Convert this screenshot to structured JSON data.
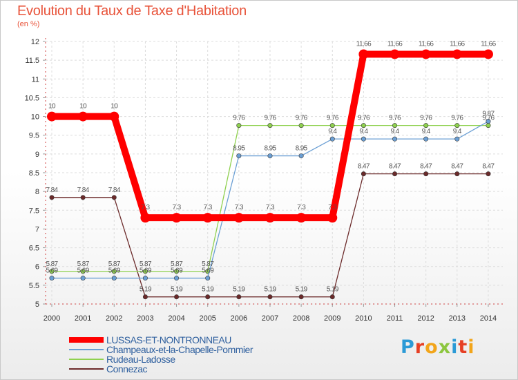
{
  "title": "Evolution du Taux de Taxe d'Habitation",
  "subtitle": "(en %)",
  "brand": [
    "P",
    "r",
    "o",
    "x",
    "i",
    "t",
    "i"
  ],
  "brand_colors": [
    "#2b9ad6",
    "#e63f24",
    "#f2a51a",
    "#8cc63e",
    "#2b9ad6",
    "#e63f24",
    "#f2a51a"
  ],
  "chart_data": {
    "type": "line",
    "x": [
      "2000",
      "2001",
      "2002",
      "2003",
      "2004",
      "2005",
      "2006",
      "2007",
      "2008",
      "2009",
      "2010",
      "2011",
      "2012",
      "2013",
      "2014"
    ],
    "ylim": [
      5,
      12
    ],
    "yticks": [
      "5",
      "5.5",
      "6",
      "6.5",
      "7",
      "7.5",
      "8",
      "8.5",
      "9",
      "9.5",
      "10",
      "10.5",
      "11",
      "11.5",
      "12"
    ],
    "series": [
      {
        "name": "LUSSAS-ET-NONTRONNEAU",
        "color": "#ff0000",
        "values": [
          10,
          10,
          10,
          7.3,
          7.3,
          7.3,
          7.3,
          7.3,
          7.3,
          7.3,
          11.66,
          11.66,
          11.66,
          11.66,
          11.66
        ],
        "labels": [
          "10",
          "10",
          "10",
          "7.3",
          "7.3",
          "7.3",
          "7.3",
          "7.3",
          "7.3",
          "7.3",
          "11.66",
          "11.66",
          "11.66",
          "11.66",
          "11.66"
        ]
      },
      {
        "name": "Champeaux-et-la-Chapelle-Pommier",
        "color": "#6b9fd4",
        "values": [
          5.69,
          5.69,
          5.69,
          5.69,
          5.69,
          5.69,
          8.95,
          8.95,
          8.95,
          9.4,
          9.4,
          9.4,
          9.4,
          9.4,
          9.87
        ],
        "labels": [
          "5.69",
          "5.69",
          "5.69",
          "5.69",
          "5.69",
          "5.69",
          "8.95",
          "8.95",
          "8.95",
          "9.4",
          "9.4",
          "9.4",
          "9.4",
          "9.4",
          "9.87"
        ]
      },
      {
        "name": "Rudeau-Ladosse",
        "color": "#8fd14f",
        "values": [
          5.87,
          5.87,
          5.87,
          5.87,
          5.87,
          5.87,
          9.76,
          9.76,
          9.76,
          9.76,
          9.76,
          9.76,
          9.76,
          9.76,
          9.76
        ],
        "labels": [
          "5.87",
          "5.87",
          "5.87",
          "5.87",
          "5.87",
          "5.87",
          "9.76",
          "9.76",
          "9.76",
          "9.76",
          "9.76",
          "9.76",
          "9.76",
          "9.76",
          "9.76"
        ]
      },
      {
        "name": "Connezac",
        "color": "#6b2a2a",
        "values": [
          7.84,
          7.84,
          7.84,
          5.19,
          5.19,
          5.19,
          5.19,
          5.19,
          5.19,
          5.19,
          8.47,
          8.47,
          8.47,
          8.47,
          8.47
        ],
        "labels": [
          "7.84",
          "7.84",
          "7.84",
          "5.19",
          "5.19",
          "5.19",
          "5.19",
          "5.19",
          "5.19",
          "5.19",
          "8.47",
          "8.47",
          "8.47",
          "8.47",
          "8.47"
        ]
      }
    ]
  }
}
